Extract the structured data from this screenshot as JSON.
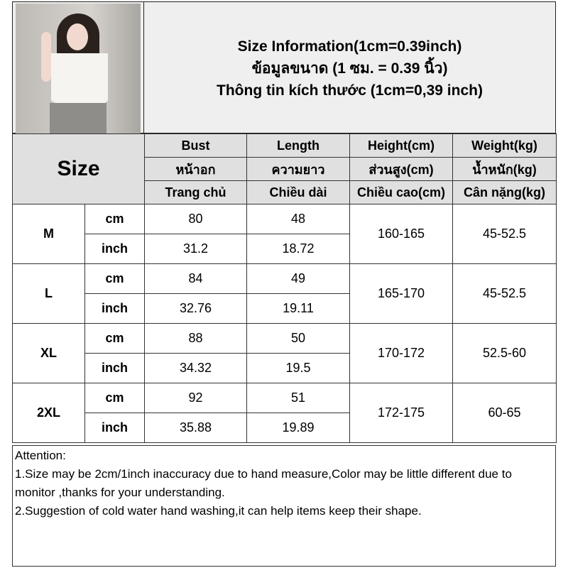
{
  "header": {
    "title_lines": [
      "Size Information(1cm=0.39inch)",
      "ข้อมูลขนาด (1 ซม. = 0.39 นิ้ว)",
      "Thông tin kích thước (1cm=0,39 inch)"
    ]
  },
  "table": {
    "size_label": "Size",
    "columns": [
      {
        "en": "Bust",
        "th": "หน้าอก",
        "vi": "Trang chủ"
      },
      {
        "en": "Length",
        "th": "ความยาว",
        "vi": "Chiều dài"
      },
      {
        "en": "Height(cm)",
        "th": "ส่วนสูง(cm)",
        "vi": "Chiều cao(cm)"
      },
      {
        "en": "Weight(kg)",
        "th": "น้ำหนัก(kg)",
        "vi": "Cân nặng(kg)"
      }
    ],
    "rows": [
      {
        "size": "M",
        "cm_label": "cm",
        "inch_label": "inch",
        "bust_cm": "80",
        "length_cm": "48",
        "bust_in": "31.2",
        "length_in": "18.72",
        "height": "160-165",
        "weight": "45-52.5"
      },
      {
        "size": "L",
        "cm_label": "cm",
        "inch_label": "inch",
        "bust_cm": "84",
        "length_cm": "49",
        "bust_in": "32.76",
        "length_in": "19.11",
        "height": "165-170",
        "weight": "45-52.5"
      },
      {
        "size": "XL",
        "cm_label": "cm",
        "inch_label": "inch",
        "bust_cm": "88",
        "length_cm": "50",
        "bust_in": "34.32",
        "length_in": "19.5",
        "height": "170-172",
        "weight": "52.5-60"
      },
      {
        "size": "2XL",
        "cm_label": "cm",
        "inch_label": "inch",
        "bust_cm": "92",
        "length_cm": "51",
        "bust_in": "35.88",
        "length_in": "19.89",
        "height": "172-175",
        "weight": "60-65"
      }
    ]
  },
  "attention": {
    "heading": "Attention:",
    "lines": [
      "1.Size may be 2cm/1inch inaccuracy due to hand measure,Color may be little different due to monitor ,thanks for your understanding.",
      "2.Suggestion of cold water hand washing,it can help items keep their shape."
    ]
  }
}
